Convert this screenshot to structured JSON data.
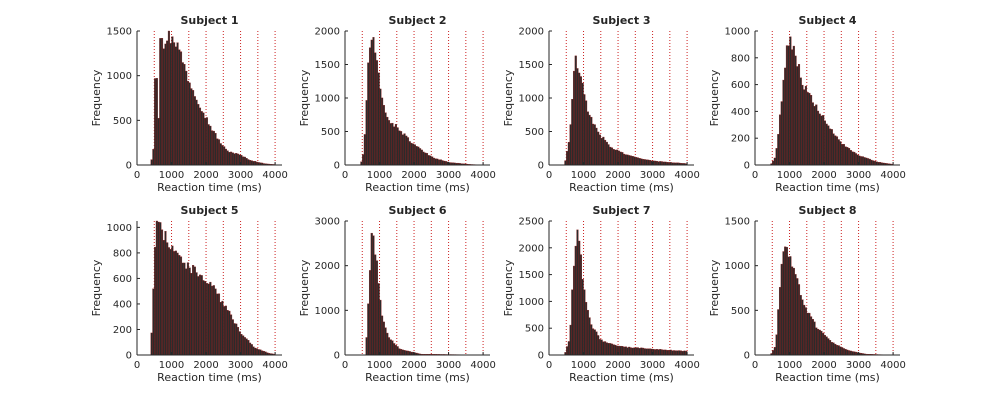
{
  "chart_data": [
    {
      "type": "bar",
      "title": "Subject 1",
      "xlabel": "Reaction time (ms)",
      "ylabel": "Frequency",
      "xlim": [
        0,
        4200
      ],
      "ylim": [
        0,
        1500
      ],
      "xticks": [
        0,
        1000,
        2000,
        3000,
        4000
      ],
      "yticks": [
        0,
        500,
        1000,
        1500
      ],
      "vlines_ms": [
        500,
        1000,
        1500,
        2000,
        2500,
        3000,
        3500,
        4000
      ],
      "bin_width_ms": 50,
      "bins": [
        {
          "x": [
            400,
            1000
          ],
          "y": [
            0,
            1480
          ]
        },
        {
          "x": [
            1000,
            1150
          ],
          "y": [
            1480,
            1360
          ]
        },
        {
          "x": [
            1150,
            1300
          ],
          "y": [
            1360,
            1200
          ]
        },
        {
          "x": [
            1300,
            1500
          ],
          "y": [
            1200,
            950
          ]
        },
        {
          "x": [
            1500,
            1800
          ],
          "y": [
            950,
            700
          ]
        },
        {
          "x": [
            1800,
            2100
          ],
          "y": [
            700,
            450
          ]
        },
        {
          "x": [
            2100,
            2400
          ],
          "y": [
            450,
            260
          ]
        },
        {
          "x": [
            2400,
            2600
          ],
          "y": [
            260,
            160
          ]
        },
        {
          "x": [
            2600,
            3000
          ],
          "y": [
            160,
            110
          ]
        },
        {
          "x": [
            3000,
            3300
          ],
          "y": [
            110,
            50
          ]
        },
        {
          "x": [
            3300,
            3700
          ],
          "y": [
            50,
            15
          ]
        },
        {
          "x": [
            3700,
            4000
          ],
          "y": [
            15,
            5
          ]
        }
      ],
      "peaks": [
        {
          "x": 550,
          "y": 1000
        },
        {
          "x": 700,
          "y": 1480
        },
        {
          "x": 800,
          "y": 1300
        },
        {
          "x": 900,
          "y": 1450
        }
      ]
    },
    {
      "type": "bar",
      "title": "Subject 2",
      "xlabel": "Reaction time (ms)",
      "ylabel": "Frequency",
      "xlim": [
        0,
        4200
      ],
      "ylim": [
        0,
        2000
      ],
      "xticks": [
        0,
        1000,
        2000,
        3000,
        4000
      ],
      "yticks": [
        0,
        500,
        1000,
        1500,
        2000
      ],
      "vlines_ms": [
        500,
        1000,
        1500,
        2000,
        2500,
        3000,
        3500,
        4000
      ],
      "bin_width_ms": 50,
      "bins": [
        {
          "x": [
            450,
            550
          ],
          "y": [
            0,
            200
          ]
        },
        {
          "x": [
            550,
            700
          ],
          "y": [
            200,
            1750
          ]
        },
        {
          "x": [
            700,
            800
          ],
          "y": [
            1750,
            1900
          ]
        },
        {
          "x": [
            800,
            950
          ],
          "y": [
            1900,
            1400
          ]
        },
        {
          "x": [
            950,
            1100
          ],
          "y": [
            1400,
            900
          ]
        },
        {
          "x": [
            1100,
            1300
          ],
          "y": [
            900,
            650
          ]
        },
        {
          "x": [
            1300,
            1600
          ],
          "y": [
            650,
            520
          ]
        },
        {
          "x": [
            1600,
            2000
          ],
          "y": [
            520,
            300
          ]
        },
        {
          "x": [
            2000,
            2500
          ],
          "y": [
            300,
            120
          ]
        },
        {
          "x": [
            2500,
            3000
          ],
          "y": [
            120,
            40
          ]
        },
        {
          "x": [
            3000,
            3600
          ],
          "y": [
            40,
            10
          ]
        },
        {
          "x": [
            3600,
            4000
          ],
          "y": [
            10,
            0
          ]
        }
      ],
      "peaks": []
    },
    {
      "type": "bar",
      "title": "Subject 3",
      "xlabel": "Reaction time (ms)",
      "ylabel": "Frequency",
      "xlim": [
        0,
        4200
      ],
      "ylim": [
        0,
        2000
      ],
      "xticks": [
        0,
        1000,
        2000,
        3000,
        4000
      ],
      "yticks": [
        0,
        500,
        1000,
        1500,
        2000
      ],
      "vlines_ms": [
        500,
        1000,
        1500,
        2000,
        2500,
        3000,
        3500,
        4000
      ],
      "bin_width_ms": 50,
      "bins": [
        {
          "x": [
            450,
            600
          ],
          "y": [
            0,
            400
          ]
        },
        {
          "x": [
            600,
            750
          ],
          "y": [
            400,
            1600
          ]
        },
        {
          "x": [
            750,
            900
          ],
          "y": [
            1600,
            1350
          ]
        },
        {
          "x": [
            900,
            1100
          ],
          "y": [
            1350,
            850
          ]
        },
        {
          "x": [
            1100,
            1400
          ],
          "y": [
            850,
            500
          ]
        },
        {
          "x": [
            1400,
            1800
          ],
          "y": [
            500,
            260
          ]
        },
        {
          "x": [
            1800,
            2300
          ],
          "y": [
            260,
            140
          ]
        },
        {
          "x": [
            2300,
            3000
          ],
          "y": [
            140,
            60
          ]
        },
        {
          "x": [
            3000,
            4000
          ],
          "y": [
            60,
            20
          ]
        }
      ],
      "peaks": []
    },
    {
      "type": "bar",
      "title": "Subject 4",
      "xlabel": "Reaction time (ms)",
      "ylabel": "Frequency",
      "xlim": [
        0,
        4200
      ],
      "ylim": [
        0,
        1000
      ],
      "xticks": [
        0,
        1000,
        2000,
        3000,
        4000
      ],
      "yticks": [
        0,
        200,
        400,
        600,
        800,
        1000
      ],
      "vlines_ms": [
        500,
        1000,
        1500,
        2000,
        2500,
        3000,
        3500,
        4000
      ],
      "bin_width_ms": 50,
      "bins": [
        {
          "x": [
            450,
            600
          ],
          "y": [
            0,
            60
          ]
        },
        {
          "x": [
            600,
            800
          ],
          "y": [
            60,
            550
          ]
        },
        {
          "x": [
            800,
            950
          ],
          "y": [
            550,
            960
          ]
        },
        {
          "x": [
            950,
            1150
          ],
          "y": [
            960,
            850
          ]
        },
        {
          "x": [
            1150,
            1400
          ],
          "y": [
            850,
            600
          ]
        },
        {
          "x": [
            1400,
            1800
          ],
          "y": [
            600,
            420
          ]
        },
        {
          "x": [
            1800,
            2200
          ],
          "y": [
            420,
            260
          ]
        },
        {
          "x": [
            2200,
            2600
          ],
          "y": [
            260,
            140
          ]
        },
        {
          "x": [
            2600,
            3000
          ],
          "y": [
            140,
            70
          ]
        },
        {
          "x": [
            3000,
            3600
          ],
          "y": [
            70,
            20
          ]
        },
        {
          "x": [
            3600,
            4000
          ],
          "y": [
            20,
            5
          ]
        }
      ],
      "peaks": []
    },
    {
      "type": "bar",
      "title": "Subject 5",
      "xlabel": "Reaction time (ms)",
      "ylabel": "Frequency",
      "xlim": [
        0,
        4200
      ],
      "ylim": [
        0,
        1050
      ],
      "xticks": [
        0,
        1000,
        2000,
        3000,
        4000
      ],
      "yticks": [
        0,
        200,
        400,
        600,
        800,
        1000
      ],
      "vlines_ms": [
        500,
        1000,
        1500,
        2000,
        2500,
        3000,
        3500,
        4000
      ],
      "bin_width_ms": 50,
      "bins": [
        {
          "x": [
            400,
            550
          ],
          "y": [
            0,
            1060
          ]
        },
        {
          "x": [
            550,
            800
          ],
          "y": [
            1060,
            930
          ]
        },
        {
          "x": [
            800,
            1100
          ],
          "y": [
            930,
            830
          ]
        },
        {
          "x": [
            1100,
            1400
          ],
          "y": [
            830,
            700
          ]
        },
        {
          "x": [
            1400,
            1800
          ],
          "y": [
            700,
            640
          ]
        },
        {
          "x": [
            1800,
            2200
          ],
          "y": [
            640,
            530
          ]
        },
        {
          "x": [
            2200,
            2600
          ],
          "y": [
            530,
            360
          ]
        },
        {
          "x": [
            2600,
            3000
          ],
          "y": [
            360,
            180
          ]
        },
        {
          "x": [
            3000,
            3400
          ],
          "y": [
            180,
            60
          ]
        },
        {
          "x": [
            3400,
            3800
          ],
          "y": [
            60,
            15
          ]
        },
        {
          "x": [
            3800,
            4000
          ],
          "y": [
            15,
            5
          ]
        }
      ],
      "peaks": []
    },
    {
      "type": "bar",
      "title": "Subject 6",
      "xlabel": "Reaction time (ms)",
      "ylabel": "Frequency",
      "xlim": [
        0,
        4200
      ],
      "ylim": [
        0,
        3000
      ],
      "xticks": [
        0,
        1000,
        2000,
        3000,
        4000
      ],
      "yticks": [
        0,
        1000,
        2000,
        3000
      ],
      "vlines_ms": [
        500,
        1000,
        1500,
        2000,
        2500,
        3000,
        3500,
        4000
      ],
      "bin_width_ms": 50,
      "bins": [
        {
          "x": [
            600,
            700
          ],
          "y": [
            0,
            1600
          ]
        },
        {
          "x": [
            700,
            800
          ],
          "y": [
            1600,
            2900
          ]
        },
        {
          "x": [
            800,
            900
          ],
          "y": [
            2900,
            2200
          ]
        },
        {
          "x": [
            900,
            1050
          ],
          "y": [
            2200,
            1000
          ]
        },
        {
          "x": [
            1050,
            1250
          ],
          "y": [
            1000,
            400
          ]
        },
        {
          "x": [
            1250,
            1600
          ],
          "y": [
            400,
            130
          ]
        },
        {
          "x": [
            1600,
            2200
          ],
          "y": [
            130,
            20
          ]
        },
        {
          "x": [
            2200,
            4000
          ],
          "y": [
            20,
            0
          ]
        }
      ],
      "peaks": []
    },
    {
      "type": "bar",
      "title": "Subject 7",
      "xlabel": "Reaction time (ms)",
      "ylabel": "Frequency",
      "xlim": [
        0,
        4200
      ],
      "ylim": [
        0,
        2500
      ],
      "xticks": [
        0,
        1000,
        2000,
        3000,
        4000
      ],
      "yticks": [
        0,
        500,
        1000,
        1500,
        2000,
        2500
      ],
      "vlines_ms": [
        500,
        1000,
        1500,
        2000,
        2500,
        3000,
        3500,
        4000
      ],
      "bin_width_ms": 50,
      "bins": [
        {
          "x": [
            450,
            600
          ],
          "y": [
            0,
            300
          ]
        },
        {
          "x": [
            600,
            750
          ],
          "y": [
            300,
            2000
          ]
        },
        {
          "x": [
            750,
            850
          ],
          "y": [
            2000,
            2300
          ]
        },
        {
          "x": [
            850,
            1000
          ],
          "y": [
            2300,
            1300
          ]
        },
        {
          "x": [
            1000,
            1200
          ],
          "y": [
            1300,
            600
          ]
        },
        {
          "x": [
            1200,
            1500
          ],
          "y": [
            600,
            280
          ]
        },
        {
          "x": [
            1500,
            2000
          ],
          "y": [
            280,
            160
          ]
        },
        {
          "x": [
            2000,
            3000
          ],
          "y": [
            160,
            110
          ]
        },
        {
          "x": [
            3000,
            4000
          ],
          "y": [
            110,
            70
          ]
        }
      ],
      "peaks": []
    },
    {
      "type": "bar",
      "title": "Subject 8",
      "xlabel": "Reaction time (ms)",
      "ylabel": "Frequency",
      "xlim": [
        0,
        4200
      ],
      "ylim": [
        0,
        1500
      ],
      "xticks": [
        0,
        1000,
        2000,
        3000,
        4000
      ],
      "yticks": [
        0,
        500,
        1000,
        1500
      ],
      "vlines_ms": [
        500,
        1000,
        1500,
        2000,
        2500,
        3000,
        3500,
        4000
      ],
      "bin_width_ms": 50,
      "bins": [
        {
          "x": [
            450,
            600
          ],
          "y": [
            0,
            100
          ]
        },
        {
          "x": [
            600,
            750
          ],
          "y": [
            100,
            900
          ]
        },
        {
          "x": [
            750,
            850
          ],
          "y": [
            900,
            1280
          ]
        },
        {
          "x": [
            850,
            1000
          ],
          "y": [
            1280,
            1100
          ]
        },
        {
          "x": [
            1000,
            1200
          ],
          "y": [
            1100,
            850
          ]
        },
        {
          "x": [
            1200,
            1500
          ],
          "y": [
            850,
            500
          ]
        },
        {
          "x": [
            1500,
            1800
          ],
          "y": [
            500,
            300
          ]
        },
        {
          "x": [
            1800,
            2200
          ],
          "y": [
            300,
            150
          ]
        },
        {
          "x": [
            2200,
            2700
          ],
          "y": [
            150,
            50
          ]
        },
        {
          "x": [
            2700,
            3200
          ],
          "y": [
            50,
            10
          ]
        },
        {
          "x": [
            3200,
            4000
          ],
          "y": [
            10,
            0
          ]
        }
      ],
      "peaks": []
    }
  ],
  "colors": {
    "bar_fill": "#2b2b2b",
    "bar_edge": "#8b1a1a",
    "vline": "#cc2222",
    "axis": "#262626",
    "background": "#ffffff"
  }
}
